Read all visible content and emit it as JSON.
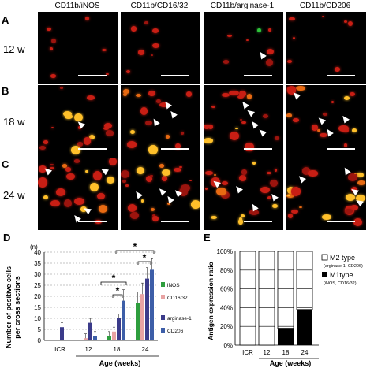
{
  "micrographs": {
    "columns": [
      "CD11b/iNOS",
      "CD11b/CD16/32",
      "CD11b/arginase-1",
      "CD11b/CD206"
    ],
    "rows": [
      {
        "letter": "A",
        "age": "12 w"
      },
      {
        "letter": "B",
        "age": "18 w"
      },
      {
        "letter": "C",
        "age": "24 w"
      }
    ]
  },
  "panel_d": {
    "letter": "D",
    "unit": "(n)",
    "ylabel_line1": "Number of positive cells",
    "ylabel_line2": "per cross sections",
    "yticks": [
      "0",
      "5",
      "10",
      "15",
      "20",
      "25",
      "30",
      "35",
      "40"
    ],
    "xlabel": "Age (weeks)",
    "star": "*",
    "legend": [
      "iNOS",
      "CD16/32",
      "arginase-1",
      "CD206"
    ]
  },
  "panel_e": {
    "letter": "E",
    "ylabel": "Antigen expression ratio",
    "yticks": [
      "0%",
      "20%",
      "40%",
      "60%",
      "80%",
      "100%"
    ],
    "xlabel": "Age (weeks)",
    "legend_m2": "M2 type",
    "legend_m2_sub": "(arginase-1, CD206)",
    "legend_m1": "M1type",
    "legend_m1_sub": "(iNOS, CD16/32)"
  },
  "colors": {
    "inos": "#2e9e3e",
    "cd1632": "#e8a3a3",
    "arginase": "#3b3b8a",
    "cd206": "#3d5ea8",
    "m1": "#000000",
    "m2": "#ffffff"
  },
  "chart_data": [
    {
      "type": "bar",
      "categories": [
        "ICR",
        "12",
        "18",
        "24"
      ],
      "series": [
        {
          "name": "iNOS",
          "values": [
            0,
            0,
            2,
            17
          ]
        },
        {
          "name": "CD16/32",
          "values": [
            0,
            1,
            4,
            21
          ]
        },
        {
          "name": "arginase-1",
          "values": [
            6,
            8,
            10,
            28
          ]
        },
        {
          "name": "CD206",
          "values": [
            0,
            2,
            18,
            32
          ]
        }
      ],
      "ylabel": "Number of positive cells per cross sections",
      "xlabel": "Age (weeks)",
      "ylim": [
        0,
        40
      ]
    },
    {
      "type": "bar",
      "stacked": true,
      "categories": [
        "ICR",
        "12",
        "18",
        "24"
      ],
      "series": [
        {
          "name": "M1type",
          "values": [
            0,
            0,
            18,
            38
          ]
        },
        {
          "name": "M2 type",
          "values": [
            100,
            100,
            82,
            62
          ]
        }
      ],
      "ylabel": "Antigen expression ratio",
      "xlabel": "Age (weeks)",
      "ylim": [
        0,
        100
      ]
    }
  ]
}
